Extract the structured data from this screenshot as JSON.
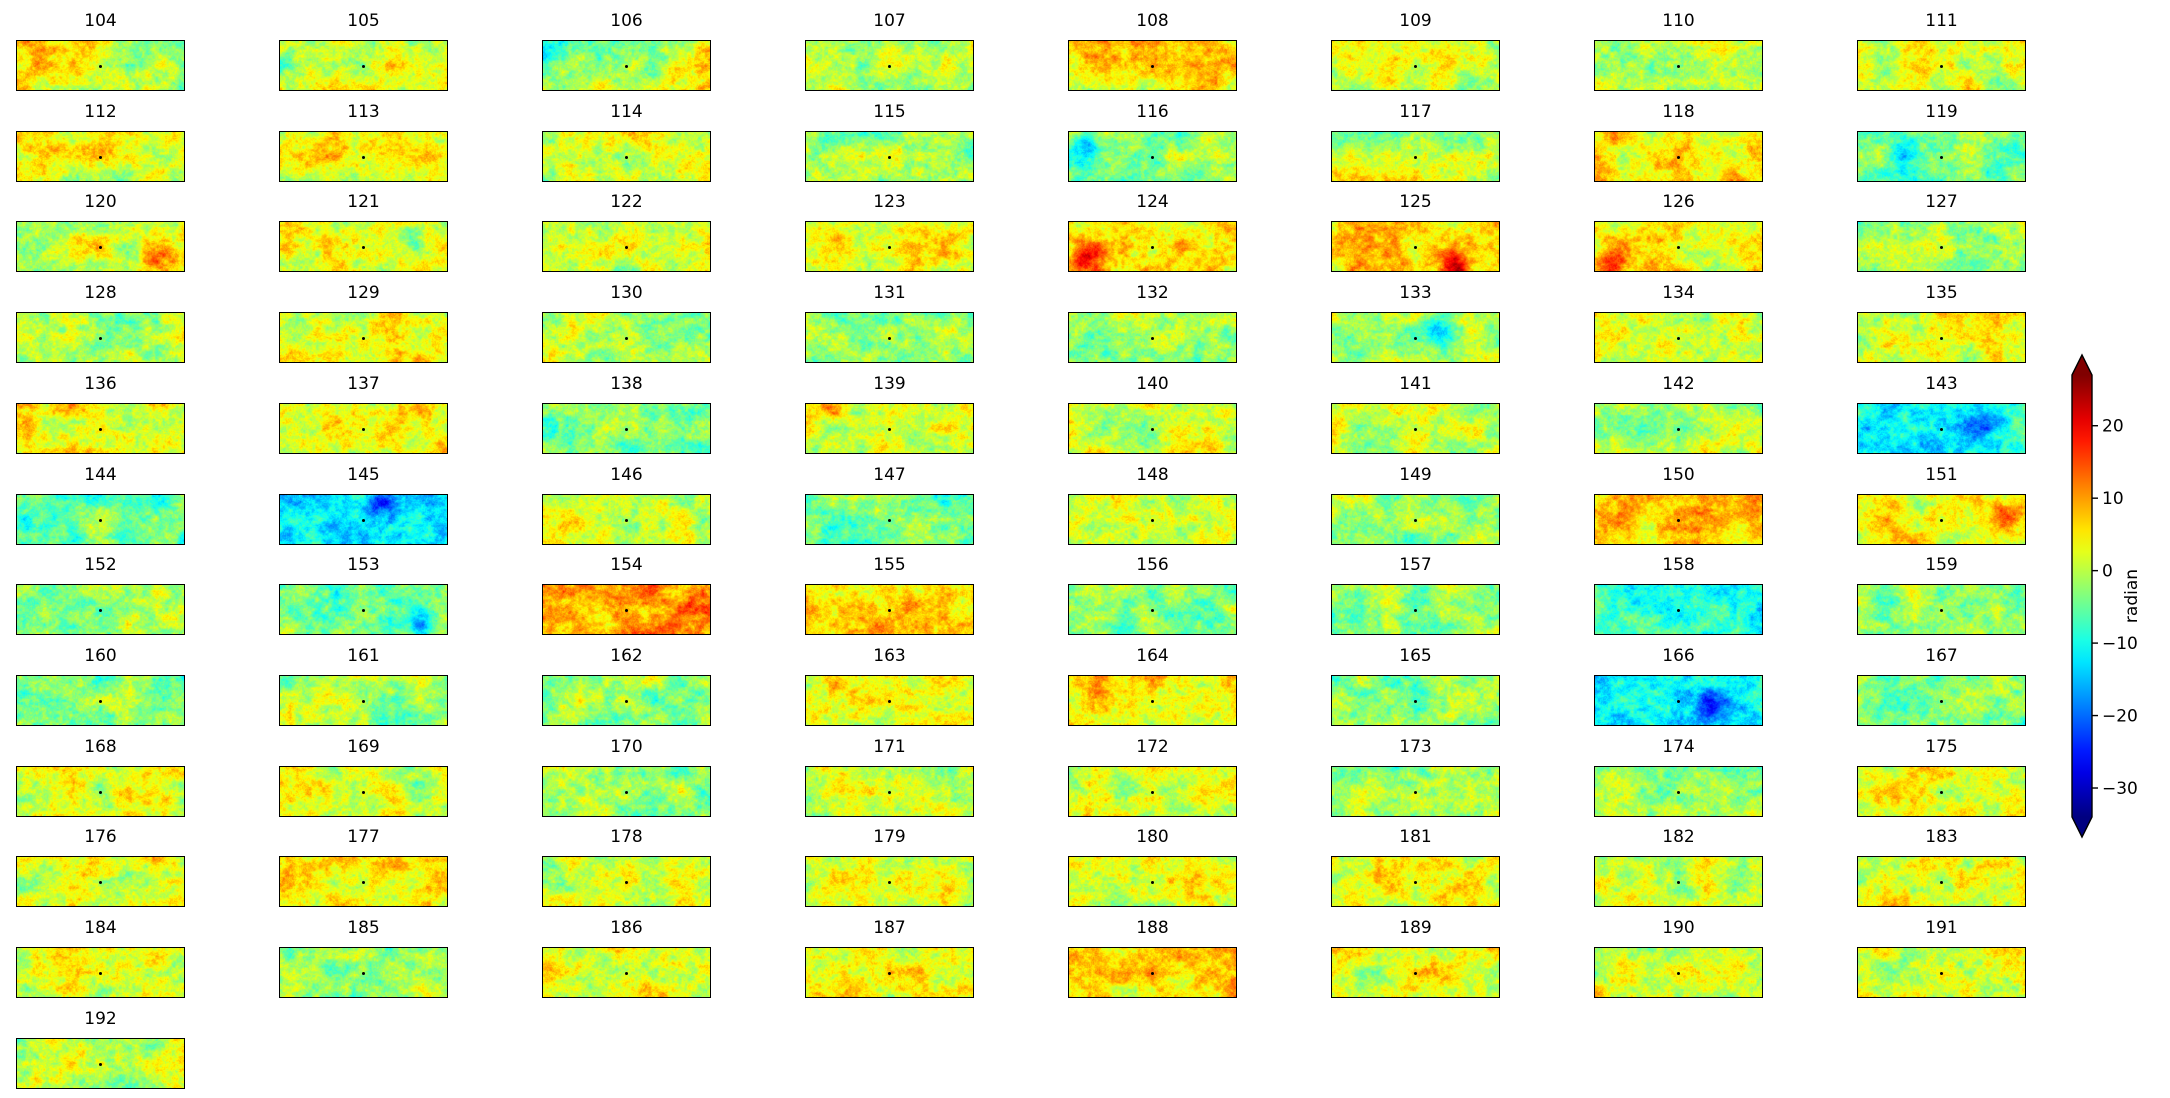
{
  "chart_data": {
    "type": "heatmap",
    "title": "",
    "colormap": "jet",
    "colorbar": {
      "label": "radian",
      "range": [
        -34,
        27
      ],
      "extend": "both",
      "ticks": [
        20,
        10,
        0,
        -10,
        -20,
        -30
      ],
      "tick_labels": [
        "20",
        "10",
        "0",
        "−10",
        "−20",
        "−30"
      ]
    },
    "layout": {
      "columns": 8,
      "rows": 12
    },
    "panels": [
      {
        "label": "104",
        "mean": 2,
        "gradient": [
          0,
          0,
          -5,
          0
        ]
      },
      {
        "label": "105",
        "mean": 3,
        "gradient": [
          -3,
          0,
          3,
          0
        ]
      },
      {
        "label": "106",
        "mean": 2,
        "gradient": [
          -5,
          0,
          5,
          0
        ]
      },
      {
        "label": "107",
        "mean": 0,
        "gradient": [
          0,
          0,
          0,
          0
        ]
      },
      {
        "label": "108",
        "mean": 4,
        "gradient": [
          5,
          0,
          0,
          0
        ]
      },
      {
        "label": "109",
        "mean": 0,
        "gradient": [
          2,
          0,
          -2,
          0
        ]
      },
      {
        "label": "110",
        "mean": -1,
        "gradient": [
          0,
          0,
          0,
          0
        ]
      },
      {
        "label": "111",
        "mean": 2,
        "gradient": [
          0,
          0,
          0,
          0
        ]
      },
      {
        "label": "112",
        "mean": 3,
        "gradient": [
          2,
          -2,
          0,
          0
        ]
      },
      {
        "label": "113",
        "mean": 4,
        "gradient": [
          0,
          0,
          0,
          0
        ]
      },
      {
        "label": "114",
        "mean": 2,
        "gradient": [
          0,
          0,
          0,
          0
        ]
      },
      {
        "label": "115",
        "mean": -1,
        "gradient": [
          0,
          0,
          0,
          0
        ]
      },
      {
        "label": "116",
        "mean": -2,
        "gradient": [
          0,
          0,
          0,
          0
        ],
        "spot": [
          0.1,
          0.3,
          -14
        ]
      },
      {
        "label": "117",
        "mean": 0,
        "gradient": [
          -2,
          3,
          0,
          0
        ]
      },
      {
        "label": "118",
        "mean": 5,
        "gradient": [
          0,
          0,
          0,
          0
        ]
      },
      {
        "label": "119",
        "mean": -4,
        "gradient": [
          0,
          0,
          0,
          0
        ],
        "spot": [
          0.25,
          0.5,
          -12
        ]
      },
      {
        "label": "120",
        "mean": 2,
        "gradient": [
          0,
          0,
          2,
          0
        ],
        "spot": [
          0.85,
          0.8,
          8
        ]
      },
      {
        "label": "121",
        "mean": 3,
        "gradient": [
          0,
          0,
          0,
          0
        ],
        "spot": [
          0.8,
          0.2,
          -8
        ]
      },
      {
        "label": "122",
        "mean": 2,
        "gradient": [
          0,
          0,
          0,
          0
        ]
      },
      {
        "label": "123",
        "mean": 4,
        "gradient": [
          0,
          0,
          0,
          0
        ]
      },
      {
        "label": "124",
        "mean": 6,
        "gradient": [
          0,
          0,
          0,
          0
        ],
        "spot": [
          0.1,
          0.8,
          14
        ]
      },
      {
        "label": "125",
        "mean": 6,
        "gradient": [
          0,
          0,
          0,
          0
        ],
        "spot": [
          0.75,
          0.9,
          16
        ]
      },
      {
        "label": "126",
        "mean": 4,
        "gradient": [
          0,
          0,
          0,
          0
        ],
        "spot": [
          0.12,
          0.85,
          16
        ]
      },
      {
        "label": "127",
        "mean": -2,
        "gradient": [
          0,
          0,
          0,
          0
        ]
      },
      {
        "label": "128",
        "mean": 0,
        "gradient": [
          0,
          0,
          0,
          0
        ]
      },
      {
        "label": "129",
        "mean": 3,
        "gradient": [
          0,
          0,
          0,
          0
        ]
      },
      {
        "label": "130",
        "mean": -1,
        "gradient": [
          0,
          0,
          0,
          0
        ]
      },
      {
        "label": "131",
        "mean": -3,
        "gradient": [
          0,
          0,
          0,
          0
        ]
      },
      {
        "label": "132",
        "mean": -2,
        "gradient": [
          0,
          0,
          0,
          0
        ]
      },
      {
        "label": "133",
        "mean": -1,
        "gradient": [
          0,
          0,
          0,
          0
        ],
        "spot": [
          0.65,
          0.3,
          -10
        ]
      },
      {
        "label": "134",
        "mean": 1,
        "gradient": [
          0,
          0,
          0,
          0
        ]
      },
      {
        "label": "135",
        "mean": 3,
        "gradient": [
          0,
          0,
          0,
          0
        ]
      },
      {
        "label": "136",
        "mean": 4,
        "gradient": [
          0,
          0,
          0,
          0
        ]
      },
      {
        "label": "137",
        "mean": 4,
        "gradient": [
          0,
          0,
          0,
          0
        ]
      },
      {
        "label": "138",
        "mean": -3,
        "gradient": [
          0,
          0,
          0,
          0
        ]
      },
      {
        "label": "139",
        "mean": 1,
        "gradient": [
          0,
          0,
          0,
          0
        ],
        "spot": [
          0.15,
          0.1,
          12
        ]
      },
      {
        "label": "140",
        "mean": 2,
        "gradient": [
          0,
          0,
          0,
          0
        ]
      },
      {
        "label": "141",
        "mean": 0,
        "gradient": [
          0,
          0,
          0,
          0
        ]
      },
      {
        "label": "142",
        "mean": 0,
        "gradient": [
          0,
          0,
          0,
          0
        ]
      },
      {
        "label": "143",
        "mean": -10,
        "gradient": [
          0,
          0,
          0,
          0
        ],
        "spot": [
          0.75,
          0.4,
          -10
        ]
      },
      {
        "label": "144",
        "mean": -5,
        "gradient": [
          0,
          0,
          0,
          0
        ]
      },
      {
        "label": "145",
        "mean": -12,
        "gradient": [
          0,
          0,
          0,
          0
        ],
        "spot": [
          0.6,
          0.1,
          -14
        ]
      },
      {
        "label": "146",
        "mean": 1,
        "gradient": [
          0,
          0,
          0,
          0
        ]
      },
      {
        "label": "147",
        "mean": -4,
        "gradient": [
          0,
          0,
          0,
          0
        ]
      },
      {
        "label": "148",
        "mean": 1,
        "gradient": [
          0,
          0,
          0,
          0
        ]
      },
      {
        "label": "149",
        "mean": -2,
        "gradient": [
          0,
          0,
          0,
          0
        ]
      },
      {
        "label": "150",
        "mean": 7,
        "gradient": [
          0,
          0,
          0,
          0
        ]
      },
      {
        "label": "151",
        "mean": 4,
        "gradient": [
          0,
          0,
          0,
          0
        ],
        "spot": [
          0.9,
          0.4,
          10
        ]
      },
      {
        "label": "152",
        "mean": -2,
        "gradient": [
          0,
          0,
          0,
          0
        ]
      },
      {
        "label": "153",
        "mean": -4,
        "gradient": [
          0,
          0,
          0,
          0
        ],
        "spot": [
          0.85,
          0.8,
          -14
        ]
      },
      {
        "label": "154",
        "mean": 10,
        "gradient": [
          0,
          0,
          0,
          0
        ]
      },
      {
        "label": "155",
        "mean": 6,
        "gradient": [
          0,
          0,
          0,
          0
        ]
      },
      {
        "label": "156",
        "mean": -3,
        "gradient": [
          0,
          0,
          0,
          0
        ]
      },
      {
        "label": "157",
        "mean": -2,
        "gradient": [
          0,
          0,
          0,
          0
        ]
      },
      {
        "label": "158",
        "mean": -9,
        "gradient": [
          0,
          0,
          0,
          0
        ]
      },
      {
        "label": "159",
        "mean": -2,
        "gradient": [
          0,
          0,
          0,
          0
        ]
      },
      {
        "label": "160",
        "mean": -4,
        "gradient": [
          0,
          0,
          0,
          0
        ]
      },
      {
        "label": "161",
        "mean": -1,
        "gradient": [
          0,
          0,
          0,
          0
        ]
      },
      {
        "label": "162",
        "mean": -2,
        "gradient": [
          0,
          0,
          0,
          0
        ]
      },
      {
        "label": "163",
        "mean": 5,
        "gradient": [
          0,
          0,
          0,
          0
        ]
      },
      {
        "label": "164",
        "mean": 5,
        "gradient": [
          0,
          0,
          0,
          0
        ]
      },
      {
        "label": "165",
        "mean": -3,
        "gradient": [
          0,
          0,
          0,
          0
        ]
      },
      {
        "label": "166",
        "mean": -12,
        "gradient": [
          0,
          0,
          0,
          0
        ],
        "spot": [
          0.7,
          0.6,
          -14
        ]
      },
      {
        "label": "167",
        "mean": -3,
        "gradient": [
          0,
          0,
          0,
          0
        ]
      },
      {
        "label": "168",
        "mean": 2,
        "gradient": [
          0,
          0,
          0,
          0
        ]
      },
      {
        "label": "169",
        "mean": 1,
        "gradient": [
          0,
          0,
          0,
          0
        ]
      },
      {
        "label": "170",
        "mean": -2,
        "gradient": [
          0,
          0,
          0,
          0
        ]
      },
      {
        "label": "171",
        "mean": 1,
        "gradient": [
          0,
          0,
          0,
          0
        ]
      },
      {
        "label": "172",
        "mean": 2,
        "gradient": [
          0,
          0,
          0,
          0
        ]
      },
      {
        "label": "173",
        "mean": -2,
        "gradient": [
          0,
          0,
          0,
          0
        ]
      },
      {
        "label": "174",
        "mean": -1,
        "gradient": [
          0,
          0,
          0,
          0
        ]
      },
      {
        "label": "175",
        "mean": 3,
        "gradient": [
          0,
          0,
          0,
          0
        ]
      },
      {
        "label": "176",
        "mean": 2,
        "gradient": [
          0,
          0,
          0,
          0
        ]
      },
      {
        "label": "177",
        "mean": 4,
        "gradient": [
          0,
          0,
          0,
          0
        ]
      },
      {
        "label": "178",
        "mean": 1,
        "gradient": [
          0,
          0,
          0,
          0
        ]
      },
      {
        "label": "179",
        "mean": 2,
        "gradient": [
          0,
          0,
          0,
          0
        ]
      },
      {
        "label": "180",
        "mean": 3,
        "gradient": [
          0,
          0,
          0,
          0
        ]
      },
      {
        "label": "181",
        "mean": 3,
        "gradient": [
          0,
          0,
          0,
          0
        ]
      },
      {
        "label": "182",
        "mean": 1,
        "gradient": [
          0,
          0,
          0,
          0
        ]
      },
      {
        "label": "183",
        "mean": 2,
        "gradient": [
          0,
          0,
          0,
          0
        ]
      },
      {
        "label": "184",
        "mean": 2,
        "gradient": [
          0,
          0,
          0,
          0
        ]
      },
      {
        "label": "185",
        "mean": -1,
        "gradient": [
          0,
          0,
          0,
          0
        ]
      },
      {
        "label": "186",
        "mean": 3,
        "gradient": [
          0,
          0,
          0,
          0
        ]
      },
      {
        "label": "187",
        "mean": 4,
        "gradient": [
          0,
          0,
          0,
          0
        ]
      },
      {
        "label": "188",
        "mean": 6,
        "gradient": [
          0,
          0,
          0,
          0
        ]
      },
      {
        "label": "189",
        "mean": 3,
        "gradient": [
          0,
          0,
          0,
          0
        ]
      },
      {
        "label": "190",
        "mean": 2,
        "gradient": [
          0,
          0,
          0,
          0
        ]
      },
      {
        "label": "191",
        "mean": 1,
        "gradient": [
          0,
          0,
          0,
          0
        ]
      },
      {
        "label": "192",
        "mean": 1,
        "gradient": [
          0,
          0,
          0,
          0
        ]
      }
    ]
  }
}
